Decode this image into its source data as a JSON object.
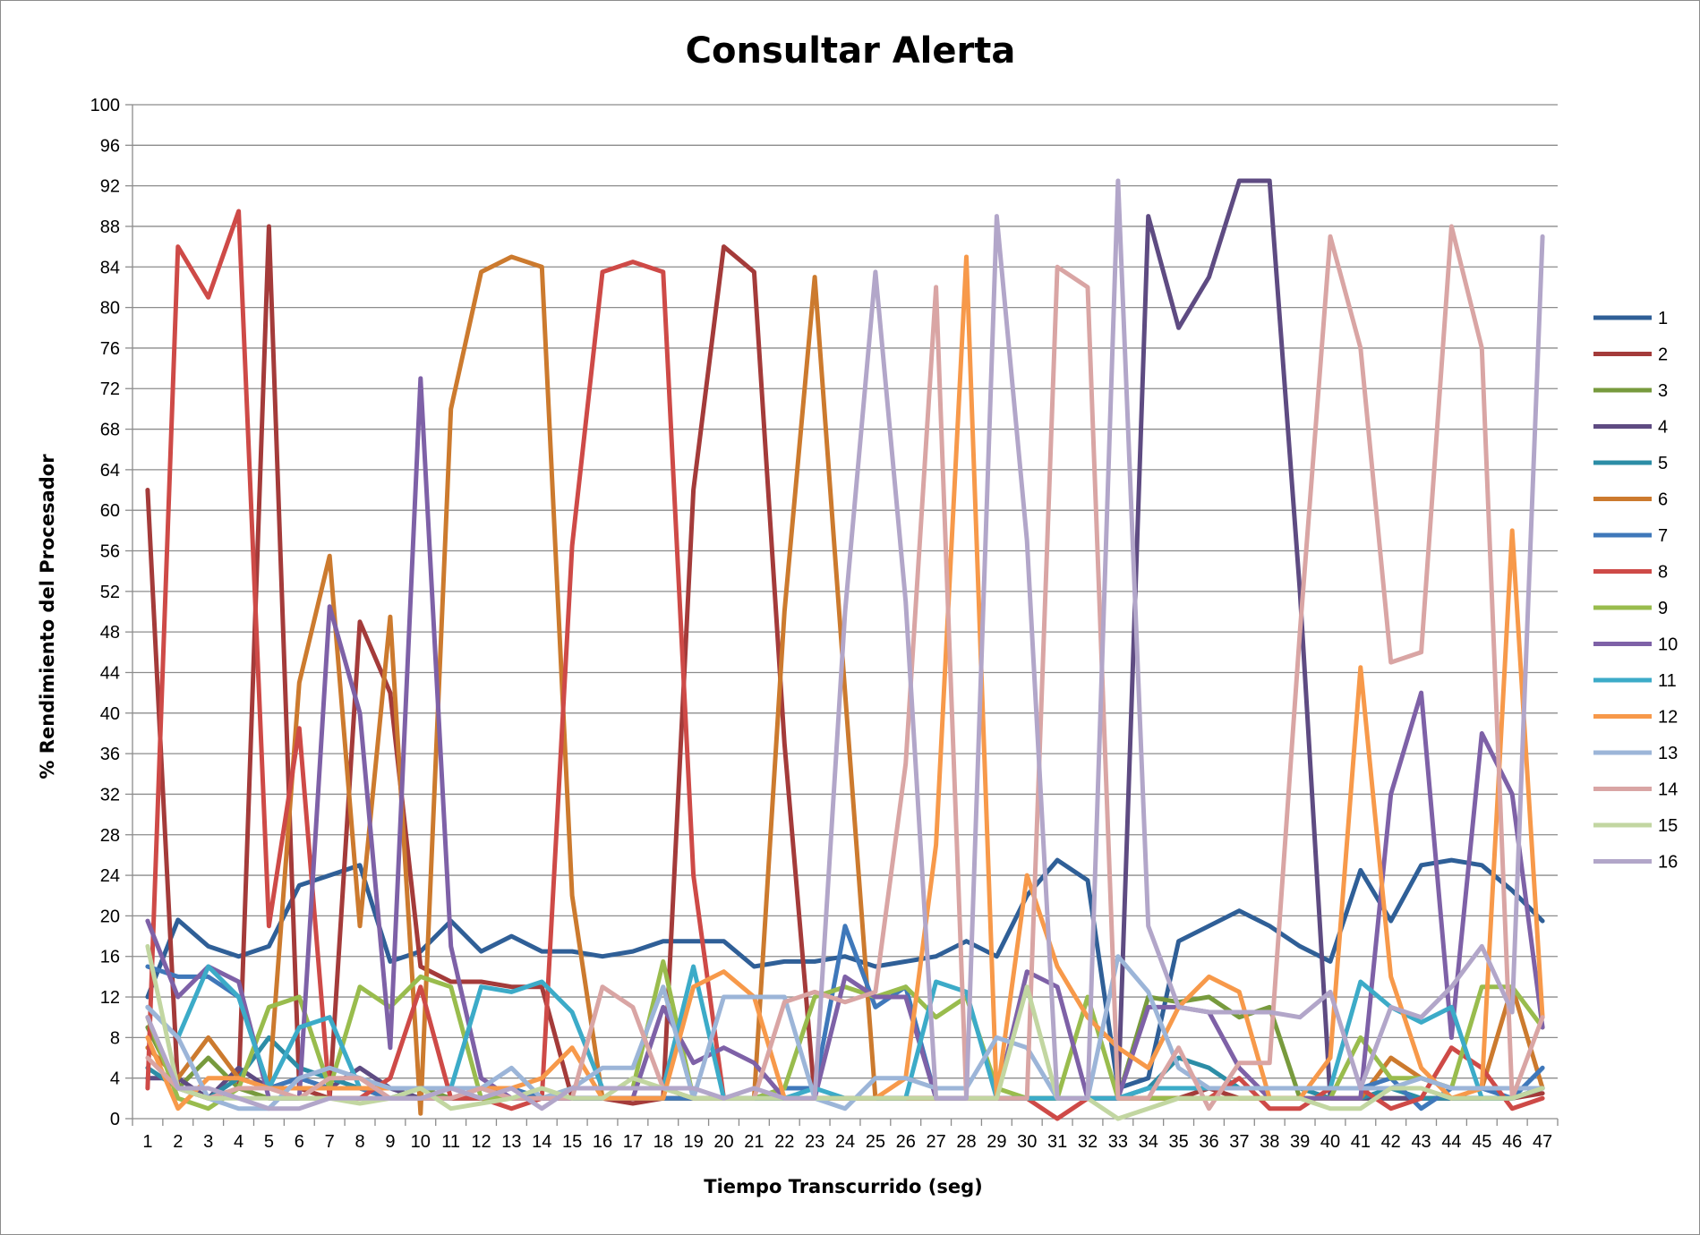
{
  "chart_data": {
    "type": "line",
    "title": "Consultar Alerta",
    "xlabel": "Tiempo Transcurrido (seg)",
    "ylabel": "% Rendimiento del Procesador",
    "ylim": [
      0,
      100
    ],
    "ytick_step": 4,
    "grid": true,
    "legend": "right",
    "x": [
      1,
      2,
      3,
      4,
      5,
      6,
      7,
      8,
      9,
      10,
      11,
      12,
      13,
      14,
      15,
      16,
      17,
      18,
      19,
      20,
      21,
      22,
      23,
      24,
      25,
      26,
      27,
      28,
      29,
      30,
      31,
      32,
      33,
      34,
      35,
      36,
      37,
      38,
      39,
      40,
      41,
      42,
      43,
      44,
      45,
      46,
      47
    ],
    "series": [
      {
        "name": "1",
        "color": "#2f5f97",
        "values": [
          12,
          19.6,
          17,
          16,
          17,
          23,
          24,
          25,
          15.5,
          16.5,
          19.5,
          16.5,
          18,
          16.5,
          16.5,
          16,
          16.5,
          17.5,
          17.5,
          17.5,
          15,
          15.5,
          15.5,
          16,
          15,
          15.5,
          16,
          17.5,
          16,
          22,
          25.5,
          23.5,
          3,
          4,
          17.5,
          19,
          20.5,
          19,
          17,
          15.5,
          24.5,
          19.5,
          25,
          25.5,
          25,
          22.5,
          19.5
        ]
      },
      {
        "name": "2",
        "color": "#a43b3a",
        "values": [
          62,
          3,
          2,
          3,
          88,
          3,
          2,
          49,
          42,
          15,
          13.5,
          13.5,
          13,
          13,
          2,
          2,
          1.5,
          2,
          62,
          86,
          83.5,
          37,
          2,
          2,
          2,
          2,
          2,
          2,
          2,
          2,
          2,
          2,
          2,
          2,
          2,
          3,
          2,
          2,
          2,
          2,
          2,
          2,
          2,
          2,
          2,
          2,
          2.5
        ]
      },
      {
        "name": "3",
        "color": "#779a3d",
        "values": [
          9,
          3,
          6,
          3,
          2,
          2,
          2,
          2,
          2,
          3,
          2,
          2,
          2,
          2,
          2,
          2,
          2,
          2,
          2,
          2,
          2,
          2,
          2,
          2,
          2,
          2,
          2,
          2,
          2,
          2,
          2,
          2,
          2,
          12,
          11.5,
          12,
          10,
          11,
          2,
          2,
          2,
          2,
          2,
          2,
          2,
          2,
          3
        ]
      },
      {
        "name": "4",
        "color": "#5e4b82",
        "values": [
          4,
          4,
          2,
          5,
          3,
          4,
          3,
          5,
          3,
          2,
          2,
          2,
          2,
          2,
          2,
          2,
          2,
          2,
          2,
          2,
          2,
          2,
          2,
          2,
          2,
          2,
          2,
          2,
          2,
          2,
          2,
          2,
          2,
          89,
          78,
          83,
          92.5,
          92.5,
          52,
          2,
          2,
          2,
          2,
          2,
          2,
          2,
          3
        ]
      },
      {
        "name": "5",
        "color": "#2c8da6",
        "values": [
          5,
          3,
          2,
          4,
          8,
          5,
          4,
          3,
          2,
          3,
          3,
          3,
          2,
          2,
          2,
          2,
          2,
          2,
          2,
          2,
          2,
          2,
          2,
          2,
          2,
          2,
          2,
          2,
          2,
          2,
          2,
          2,
          2,
          3,
          6,
          5,
          3,
          3,
          3,
          2,
          2,
          3,
          2,
          2,
          2,
          2,
          3
        ]
      },
      {
        "name": "6",
        "color": "#cc7a2e",
        "values": [
          7,
          4,
          8,
          4,
          3,
          43,
          55.5,
          19,
          49.5,
          0.5,
          70,
          83.5,
          85,
          84,
          22,
          2,
          2,
          2,
          2,
          2,
          2,
          50,
          83,
          42,
          2,
          2,
          2,
          2,
          2,
          2,
          2,
          2,
          2,
          2,
          2,
          2,
          2,
          2,
          2,
          2,
          2,
          6,
          4,
          3,
          3,
          13,
          3
        ]
      },
      {
        "name": "7",
        "color": "#3f78ba",
        "values": [
          15,
          14,
          14,
          12,
          3,
          4,
          3,
          3,
          2,
          2,
          2,
          3,
          3,
          2,
          2,
          2,
          2,
          2,
          2,
          2,
          2,
          3,
          3,
          19,
          11,
          13,
          2,
          2,
          2,
          2,
          2,
          2,
          2,
          3,
          3,
          3,
          3,
          3,
          3,
          3,
          3,
          4,
          1,
          3,
          3,
          2,
          5
        ]
      },
      {
        "name": "8",
        "color": "#ce4a47",
        "values": [
          3,
          86,
          81,
          89.5,
          19,
          38.5,
          2,
          2,
          4,
          13,
          2,
          2,
          1,
          2,
          56.5,
          83.5,
          84.5,
          83.5,
          24,
          2,
          2,
          2,
          2,
          2,
          2,
          2,
          2,
          2,
          2,
          2,
          0,
          2,
          2,
          2,
          2,
          2,
          4,
          1,
          1,
          3,
          3,
          1,
          2,
          7,
          5,
          1,
          2
        ]
      },
      {
        "name": "9",
        "color": "#99bc4d",
        "values": [
          10,
          2,
          1,
          3,
          11,
          12,
          3,
          13,
          11,
          14,
          13,
          2,
          2,
          2,
          3,
          3,
          3,
          15.5,
          2,
          2,
          2,
          3,
          12,
          13,
          12,
          13,
          10,
          12,
          3,
          2,
          2,
          12,
          2,
          2,
          2,
          2,
          2,
          2,
          2,
          2,
          8,
          4,
          4,
          3,
          13,
          13,
          9
        ]
      },
      {
        "name": "10",
        "color": "#7e61a7",
        "values": [
          19.5,
          12,
          15,
          13.5,
          2,
          2,
          50.5,
          40,
          7,
          73,
          17,
          4,
          2,
          2,
          2,
          2,
          2,
          11,
          5.5,
          7,
          5.5,
          2,
          2,
          14,
          12,
          12,
          2,
          2,
          2,
          14.5,
          13,
          2,
          2,
          11,
          11,
          10.5,
          5,
          2,
          2,
          2,
          2,
          32,
          42,
          8,
          38,
          32,
          9
        ]
      },
      {
        "name": "11",
        "color": "#3cabc8",
        "values": [
          11,
          8,
          15,
          12,
          3,
          9,
          10,
          3,
          3,
          3,
          3,
          13,
          12.5,
          13.5,
          10.5,
          3,
          3,
          3,
          15,
          2,
          2,
          2,
          3,
          2,
          2,
          2,
          13.5,
          12.5,
          2,
          2,
          2,
          2,
          2,
          3,
          3,
          3,
          3,
          3,
          3,
          3,
          13.5,
          11,
          9.5,
          11,
          2,
          2,
          3
        ]
      },
      {
        "name": "12",
        "color": "#f7994a",
        "values": [
          8,
          1,
          4,
          4,
          3,
          3,
          3,
          3,
          3,
          3,
          3,
          3,
          3,
          4,
          7,
          2,
          2,
          2,
          13,
          14.5,
          12,
          2,
          2,
          2,
          2,
          4,
          27,
          85,
          2,
          24,
          15,
          10,
          7,
          5,
          11,
          14,
          12.5,
          2,
          2,
          6,
          44.5,
          14,
          5,
          2,
          3,
          58,
          10
        ]
      },
      {
        "name": "13",
        "color": "#9cb5d8",
        "values": [
          11,
          8,
          2,
          1,
          1,
          4,
          5,
          4,
          3,
          3,
          3,
          3,
          5,
          2,
          3,
          5,
          5,
          13,
          2,
          12,
          12,
          12,
          2,
          1,
          4,
          4,
          3,
          3,
          8,
          7,
          2,
          2,
          16,
          12.5,
          5,
          3,
          3,
          3,
          3,
          3,
          3,
          3,
          4,
          3,
          3,
          3,
          3
        ]
      },
      {
        "name": "14",
        "color": "#d9a5a4",
        "values": [
          6,
          3,
          2,
          3,
          3,
          2,
          4,
          4,
          2,
          2,
          2,
          3,
          2,
          2,
          2,
          13,
          11,
          3,
          2,
          2,
          2,
          11.5,
          12.5,
          11.5,
          12.5,
          35,
          82,
          2,
          2,
          2,
          84,
          82,
          2,
          2,
          7,
          1,
          5.5,
          5.5,
          48,
          87,
          76,
          45,
          46,
          88,
          76,
          2,
          10
        ]
      },
      {
        "name": "15",
        "color": "#c2d6a1",
        "values": [
          17,
          3,
          2,
          2,
          2,
          2,
          2,
          1.5,
          2,
          3,
          1,
          1.5,
          2,
          3,
          2,
          2,
          4,
          3,
          2,
          2,
          2,
          2,
          2,
          2,
          2,
          2,
          2,
          2,
          2,
          13,
          2,
          2,
          0,
          1,
          2,
          2,
          2,
          2,
          2,
          1,
          1,
          3,
          3,
          2,
          2,
          2,
          3
        ]
      },
      {
        "name": "16",
        "color": "#b2a6c9",
        "values": [
          10,
          3,
          3,
          2,
          1,
          1,
          2,
          2,
          2,
          2,
          3,
          2,
          3,
          1,
          3,
          3,
          3,
          3,
          3,
          2,
          3,
          2,
          2,
          50,
          83.5,
          51,
          2,
          2,
          89,
          57,
          2,
          2,
          92.5,
          19,
          11,
          10.5,
          10.5,
          10.5,
          10,
          12.5,
          3,
          11,
          10,
          13,
          17,
          10.5,
          87
        ]
      }
    ]
  }
}
